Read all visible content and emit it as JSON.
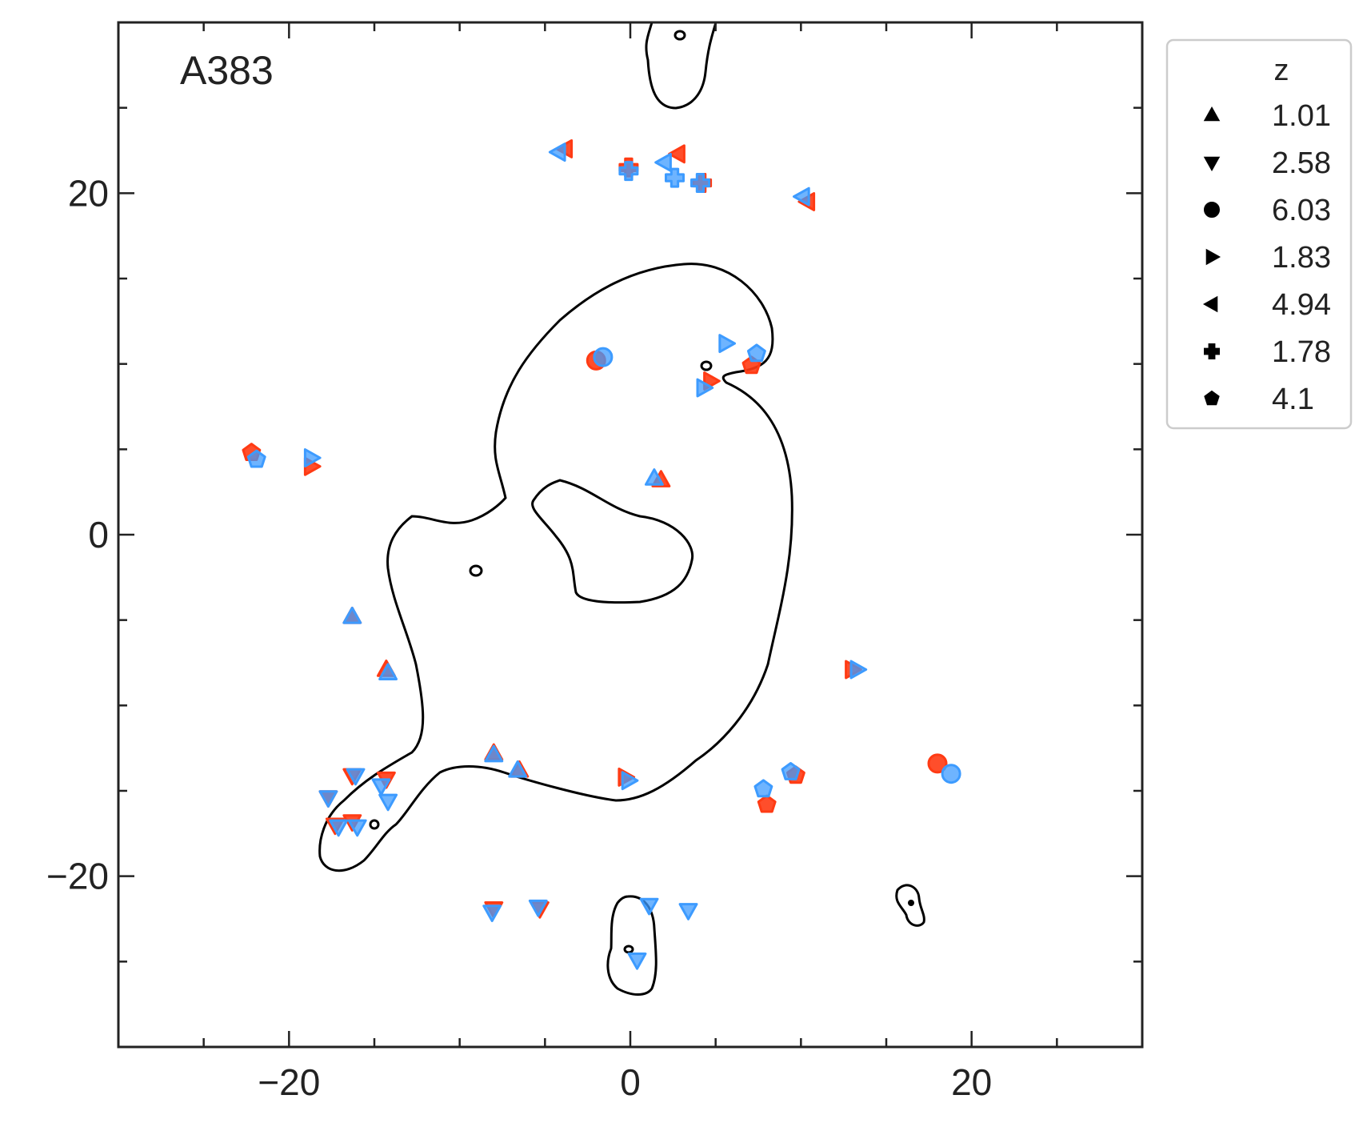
{
  "chart_data": {
    "type": "scatter",
    "panel_label": "A383",
    "xlim": [
      -30,
      30
    ],
    "ylim": [
      -30,
      30
    ],
    "xticks": [
      -20,
      0,
      20
    ],
    "yticks": [
      -20,
      0,
      20
    ],
    "xtick_labels": [
      "−20",
      "0",
      "20"
    ],
    "ytick_labels": [
      "−20",
      "0",
      "20"
    ],
    "xlabel": "",
    "ylabel": "",
    "grid": false,
    "legend": {
      "title": "z",
      "placement": "outside-top-right",
      "entries": [
        {
          "label": "1.01",
          "marker": "triangle-up"
        },
        {
          "label": "2.58",
          "marker": "triangle-down"
        },
        {
          "label": "6.03",
          "marker": "circle"
        },
        {
          "label": "1.83",
          "marker": "triangle-right"
        },
        {
          "label": "4.94",
          "marker": "triangle-left"
        },
        {
          "label": "1.78",
          "marker": "plus"
        },
        {
          "label": "4.1",
          "marker": "pentagon"
        }
      ]
    },
    "colors": {
      "observed": "#ff3b14",
      "predicted": "#3d9bff",
      "curve": "#000000",
      "axes": "#222222"
    },
    "observed": [
      {
        "z": "1.01",
        "points": [
          [
            -16.3,
            -4.8
          ],
          [
            -14.3,
            -7.9
          ],
          [
            -8.0,
            -12.8
          ],
          [
            -6.5,
            -13.8
          ],
          [
            1.8,
            3.2
          ]
        ]
      },
      {
        "z": "2.58",
        "points": [
          [
            -17.7,
            -15.4
          ],
          [
            -16.3,
            -14.1
          ],
          [
            -14.3,
            -14.3
          ],
          [
            -17.3,
            -17.0
          ],
          [
            -16.3,
            -16.8
          ],
          [
            -8.0,
            -21.9
          ],
          [
            -5.3,
            -21.9
          ]
        ]
      },
      {
        "z": "6.03",
        "points": [
          [
            -2.0,
            10.2
          ],
          [
            18.0,
            -13.4
          ]
        ]
      },
      {
        "z": "1.83",
        "points": [
          [
            -18.7,
            4.0
          ],
          [
            4.7,
            9.0
          ],
          [
            -0.3,
            -14.2
          ],
          [
            13.0,
            -7.9
          ]
        ]
      },
      {
        "z": "4.94",
        "points": [
          [
            -3.8,
            22.6
          ],
          [
            2.8,
            22.3
          ],
          [
            10.4,
            19.5
          ]
        ]
      },
      {
        "z": "1.78",
        "points": [
          [
            -0.1,
            21.5
          ],
          [
            4.2,
            20.6
          ]
        ]
      },
      {
        "z": "4.1",
        "points": [
          [
            -22.2,
            4.8
          ],
          [
            7.1,
            9.9
          ],
          [
            8.0,
            -15.8
          ],
          [
            9.7,
            -14.1
          ]
        ]
      }
    ],
    "predicted": [
      {
        "z": "1.01",
        "points": [
          [
            -16.3,
            -4.8
          ],
          [
            -14.2,
            -8.1
          ],
          [
            -8.0,
            -12.9
          ],
          [
            -6.6,
            -13.8
          ],
          [
            1.4,
            3.3
          ]
        ]
      },
      {
        "z": "2.58",
        "points": [
          [
            -17.7,
            -15.4
          ],
          [
            -16.1,
            -14.1
          ],
          [
            -14.6,
            -14.7
          ],
          [
            -14.2,
            -15.6
          ],
          [
            -17.1,
            -17.1
          ],
          [
            -16.0,
            -17.1
          ],
          [
            -8.1,
            -22.1
          ],
          [
            -5.4,
            -21.8
          ],
          [
            1.1,
            -21.7
          ],
          [
            3.4,
            -22.0
          ],
          [
            0.4,
            -24.9
          ]
        ]
      },
      {
        "z": "6.03",
        "points": [
          [
            -1.6,
            10.4
          ],
          [
            18.8,
            -14.0
          ]
        ]
      },
      {
        "z": "1.83",
        "points": [
          [
            -18.7,
            4.5
          ],
          [
            5.6,
            11.2
          ],
          [
            4.3,
            8.6
          ],
          [
            -0.1,
            -14.4
          ],
          [
            13.3,
            -7.9
          ]
        ]
      },
      {
        "z": "4.94",
        "points": [
          [
            -4.2,
            22.4
          ],
          [
            2.0,
            21.8
          ],
          [
            10.1,
            19.8
          ]
        ]
      },
      {
        "z": "1.78",
        "points": [
          [
            -0.1,
            21.3
          ],
          [
            2.6,
            20.9
          ],
          [
            4.1,
            20.6
          ]
        ]
      },
      {
        "z": "4.1",
        "points": [
          [
            -21.9,
            4.4
          ],
          [
            7.4,
            10.6
          ],
          [
            7.8,
            -14.9
          ],
          [
            9.4,
            -13.9
          ]
        ]
      }
    ]
  }
}
